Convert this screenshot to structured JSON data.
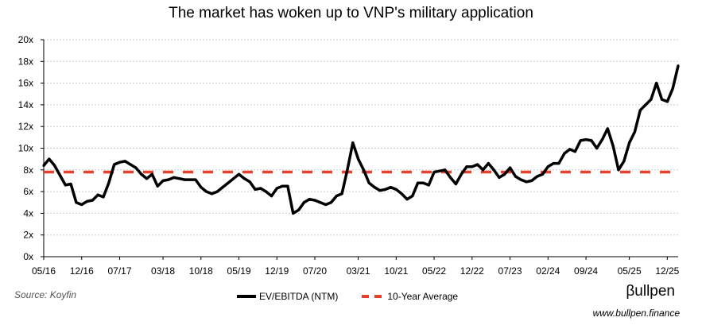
{
  "chart_data": {
    "type": "line",
    "title": "The market has woken up to VNP's military application",
    "xlabel": "",
    "ylabel": "",
    "ylim": [
      0,
      20
    ],
    "yticks": [
      "0x",
      "2x",
      "4x",
      "6x",
      "8x",
      "10x",
      "12x",
      "14x",
      "16x",
      "18x",
      "20x"
    ],
    "ytick_values": [
      0,
      2,
      4,
      6,
      8,
      10,
      12,
      14,
      16,
      18,
      20
    ],
    "xlim": [
      "2016-05",
      "2026-02"
    ],
    "xticks": [
      {
        "label": "05/16",
        "date": "2016-05"
      },
      {
        "label": "12/16",
        "date": "2016-12"
      },
      {
        "label": "07/17",
        "date": "2017-07"
      },
      {
        "label": "03/18",
        "date": "2018-03"
      },
      {
        "label": "10/18",
        "date": "2018-10"
      },
      {
        "label": "05/19",
        "date": "2019-05"
      },
      {
        "label": "12/19",
        "date": "2019-12"
      },
      {
        "label": "07/20",
        "date": "2020-07"
      },
      {
        "label": "03/21",
        "date": "2021-03"
      },
      {
        "label": "10/21",
        "date": "2021-10"
      },
      {
        "label": "05/22",
        "date": "2022-05"
      },
      {
        "label": "12/22",
        "date": "2022-12"
      },
      {
        "label": "07/23",
        "date": "2023-07"
      },
      {
        "label": "02/24",
        "date": "2024-02"
      },
      {
        "label": "09/24",
        "date": "2024-09"
      },
      {
        "label": "05/25",
        "date": "2025-05"
      },
      {
        "label": "12/25",
        "date": "2025-12"
      }
    ],
    "grid": "horizontal-dotted",
    "legend_placement": "bottom",
    "x": [
      "2016-05",
      "2016-06",
      "2016-07",
      "2016-08",
      "2016-09",
      "2016-10",
      "2016-11",
      "2016-12",
      "2017-01",
      "2017-02",
      "2017-03",
      "2017-04",
      "2017-05",
      "2017-06",
      "2017-07",
      "2017-08",
      "2017-09",
      "2017-10",
      "2017-11",
      "2017-12",
      "2018-01",
      "2018-02",
      "2018-03",
      "2018-04",
      "2018-05",
      "2018-06",
      "2018-07",
      "2018-08",
      "2018-09",
      "2018-10",
      "2018-11",
      "2018-12",
      "2019-01",
      "2019-02",
      "2019-03",
      "2019-04",
      "2019-05",
      "2019-06",
      "2019-07",
      "2019-08",
      "2019-09",
      "2019-10",
      "2019-11",
      "2019-12",
      "2020-01",
      "2020-02",
      "2020-03",
      "2020-04",
      "2020-05",
      "2020-06",
      "2020-07",
      "2020-08",
      "2020-09",
      "2020-10",
      "2020-11",
      "2020-12",
      "2021-01",
      "2021-02",
      "2021-03",
      "2021-04",
      "2021-05",
      "2021-06",
      "2021-07",
      "2021-08",
      "2021-09",
      "2021-10",
      "2021-11",
      "2021-12",
      "2022-01",
      "2022-02",
      "2022-03",
      "2022-04",
      "2022-05",
      "2022-06",
      "2022-07",
      "2022-08",
      "2022-09",
      "2022-10",
      "2022-11",
      "2022-12",
      "2023-01",
      "2023-02",
      "2023-03",
      "2023-04",
      "2023-05",
      "2023-06",
      "2023-07",
      "2023-08",
      "2023-09",
      "2023-10",
      "2023-11",
      "2023-12",
      "2024-01",
      "2024-02",
      "2024-03",
      "2024-04",
      "2024-05",
      "2024-06",
      "2024-07",
      "2024-08",
      "2024-09",
      "2024-10",
      "2024-11",
      "2024-12",
      "2025-01",
      "2025-02",
      "2025-03",
      "2025-04",
      "2025-05",
      "2025-06",
      "2025-07",
      "2025-08",
      "2025-09",
      "2025-10",
      "2025-11",
      "2025-12",
      "2026-01",
      "2026-02"
    ],
    "series": [
      {
        "name": "EV/EBITDA (NTM)",
        "color": "#000000",
        "style": "solid",
        "values": [
          8.4,
          9.0,
          8.4,
          7.5,
          6.6,
          6.7,
          5.0,
          4.8,
          5.1,
          5.2,
          5.7,
          5.5,
          6.8,
          8.5,
          8.7,
          8.8,
          8.5,
          8.2,
          7.6,
          7.2,
          7.6,
          6.5,
          7.0,
          7.1,
          7.3,
          7.2,
          7.1,
          7.1,
          7.1,
          6.4,
          6.0,
          5.8,
          6.0,
          6.4,
          6.8,
          7.2,
          7.6,
          7.2,
          6.9,
          6.2,
          6.3,
          6.0,
          5.6,
          6.3,
          6.5,
          6.5,
          4.0,
          4.3,
          5.0,
          5.3,
          5.2,
          5.0,
          4.8,
          5.0,
          5.6,
          5.8,
          8.0,
          10.5,
          9.0,
          8.0,
          6.8,
          6.4,
          6.1,
          6.2,
          6.4,
          6.2,
          5.8,
          5.3,
          5.6,
          6.8,
          6.8,
          6.6,
          7.8,
          7.9,
          8.0,
          7.3,
          6.7,
          7.6,
          8.3,
          8.3,
          8.5,
          8.0,
          8.6,
          8.0,
          7.3,
          7.6,
          8.2,
          7.4,
          7.1,
          6.9,
          7.0,
          7.4,
          7.6,
          8.3,
          8.6,
          8.6,
          9.5,
          9.9,
          9.7,
          10.7,
          10.8,
          10.7,
          10.0,
          10.8,
          11.8,
          10.2,
          8.0,
          8.8,
          10.5,
          11.5,
          13.5,
          14.0,
          14.5,
          16.0,
          14.5,
          14.3,
          15.5,
          17.6
        ]
      },
      {
        "name": "10-Year Average",
        "color": "#e8402a",
        "style": "dashed",
        "constant": 7.8
      }
    ]
  },
  "footer": {
    "source": "Source: Koyfin",
    "brand": "βullpen",
    "url": "www.bullpen.finance"
  }
}
